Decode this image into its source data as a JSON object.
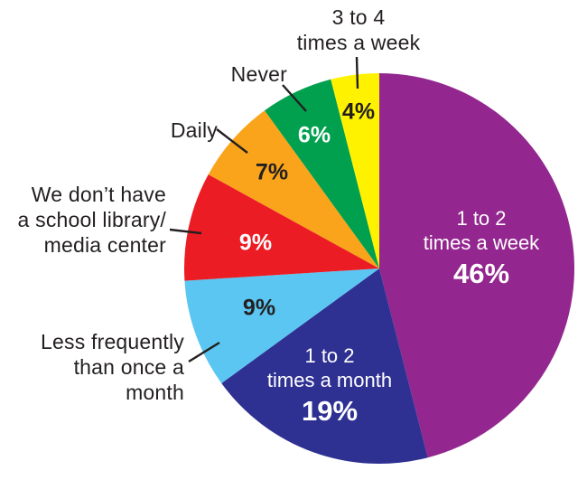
{
  "figure": {
    "kind": "pie-infographic",
    "background": "#ffffff",
    "text_color": "#231F20",
    "leader_line_color": "#231F20"
  },
  "chart_data": {
    "type": "pie",
    "title": "",
    "unit": "percent",
    "total": 100,
    "legend": "none",
    "slices": [
      {
        "label": "1 to 2 times a week",
        "value": 46,
        "pct_label": "46%",
        "color": "#93278F",
        "text_color": "#FFFFFF",
        "inside": [
          "1 to 2",
          "times a week"
        ]
      },
      {
        "label": "1 to 2 times a month",
        "value": 19,
        "pct_label": "19%",
        "color": "#2E3192",
        "text_color": "#FFFFFF",
        "inside": [
          "1 to 2",
          "times a month"
        ]
      },
      {
        "label": "Less frequently than once a month",
        "value": 9,
        "pct_label": "9%",
        "color": "#5BC6F2",
        "text_color": "#231F20",
        "ext": [
          "Less frequently",
          "than once a",
          "month"
        ]
      },
      {
        "label": "We don’t have a school library/ media center",
        "value": 9,
        "pct_label": "9%",
        "color": "#EC1C24",
        "text_color": "#FFFFFF",
        "ext": [
          "We don’t have",
          "a school library/",
          "media center"
        ]
      },
      {
        "label": "Daily",
        "value": 7,
        "pct_label": "7%",
        "color": "#F9A41A",
        "text_color": "#231F20",
        "ext": [
          "Daily"
        ]
      },
      {
        "label": "Never",
        "value": 6,
        "pct_label": "6%",
        "color": "#00A04E",
        "text_color": "#FFFFFF",
        "ext": [
          "Never"
        ]
      },
      {
        "label": "3 to 4 times a week",
        "value": 4,
        "pct_label": "4%",
        "color": "#FFF200",
        "text_color": "#231F20",
        "ext": [
          "3 to 4",
          "times a week"
        ]
      }
    ]
  }
}
